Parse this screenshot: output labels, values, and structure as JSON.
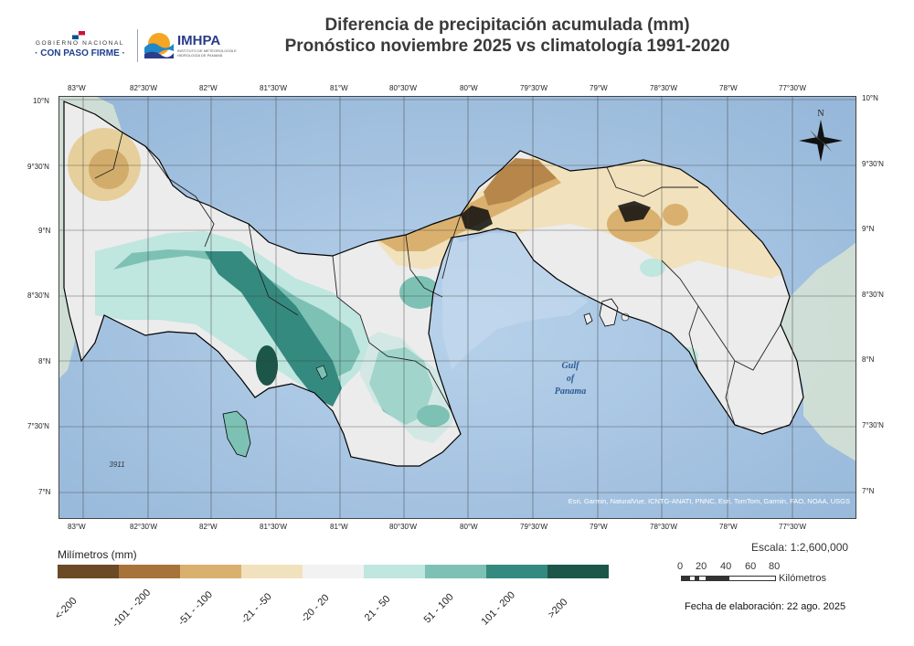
{
  "header": {
    "title_line1": "Diferencia de precipitación acumulada (mm)",
    "title_line2": "Pronóstico noviembre 2025 vs climatología 1991-2020"
  },
  "logos": {
    "gobierno_line1": "GOBIERNO NACIONAL",
    "gobierno_line2": "· CON PASO FIRME ·",
    "imhpa_name": "IMHPA",
    "imhpa_sub": "INSTITUTO DE METEOROLOGÍA E HIDROLOGÍA DE PANAMÁ"
  },
  "axes": {
    "lon_labels": [
      "83°W",
      "82°30'W",
      "82°W",
      "81°30'W",
      "81°W",
      "80°30'W",
      "80°W",
      "79°30'W",
      "79°W",
      "78°30'W",
      "78°W",
      "77°30'W"
    ],
    "lat_labels": [
      "10°N",
      "9°30'N",
      "9°N",
      "8°30'N",
      "8°N",
      "7°30'N",
      "7°N"
    ]
  },
  "map": {
    "gulf_label_1": "Gulf",
    "gulf_label_2": "of",
    "gulf_label_3": "Panama",
    "depth_label": "3911",
    "north_label": "N",
    "attribution": "Esri, Garmin, NaturalVue, ICNTG-ANATI, PNNC, Esri, TomTom, Garmin, FAO, NOAA, USGS"
  },
  "legend": {
    "title": "Milímetros (mm)",
    "classes": [
      {
        "label": "<-200",
        "color": "#6b4a26"
      },
      {
        "label": "-101 - -200",
        "color": "#a8733a"
      },
      {
        "label": "-51 - -100",
        "color": "#d9b06e"
      },
      {
        "label": "-21 - -50",
        "color": "#f1e1bd"
      },
      {
        "label": "-20 - 20",
        "color": "#f2f2f2"
      },
      {
        "label": "21 - 50",
        "color": "#bfe6df"
      },
      {
        "label": "51 - 100",
        "color": "#7dc1b4"
      },
      {
        "label": "101 - 200",
        "color": "#358a80"
      },
      {
        "label": ">200",
        "color": "#1c5649"
      }
    ]
  },
  "scale": {
    "text": "Escala: 1:2,600,000",
    "ticks": [
      "0",
      "20",
      "40",
      "60",
      "80"
    ],
    "unit": "Kilómetros"
  },
  "footer": {
    "date": "Fecha de elaboración: 22 ago. 2025"
  },
  "colors": {
    "ocean": "#a9c6e2",
    "border": "#000000",
    "neutral_land": "#ececec"
  }
}
